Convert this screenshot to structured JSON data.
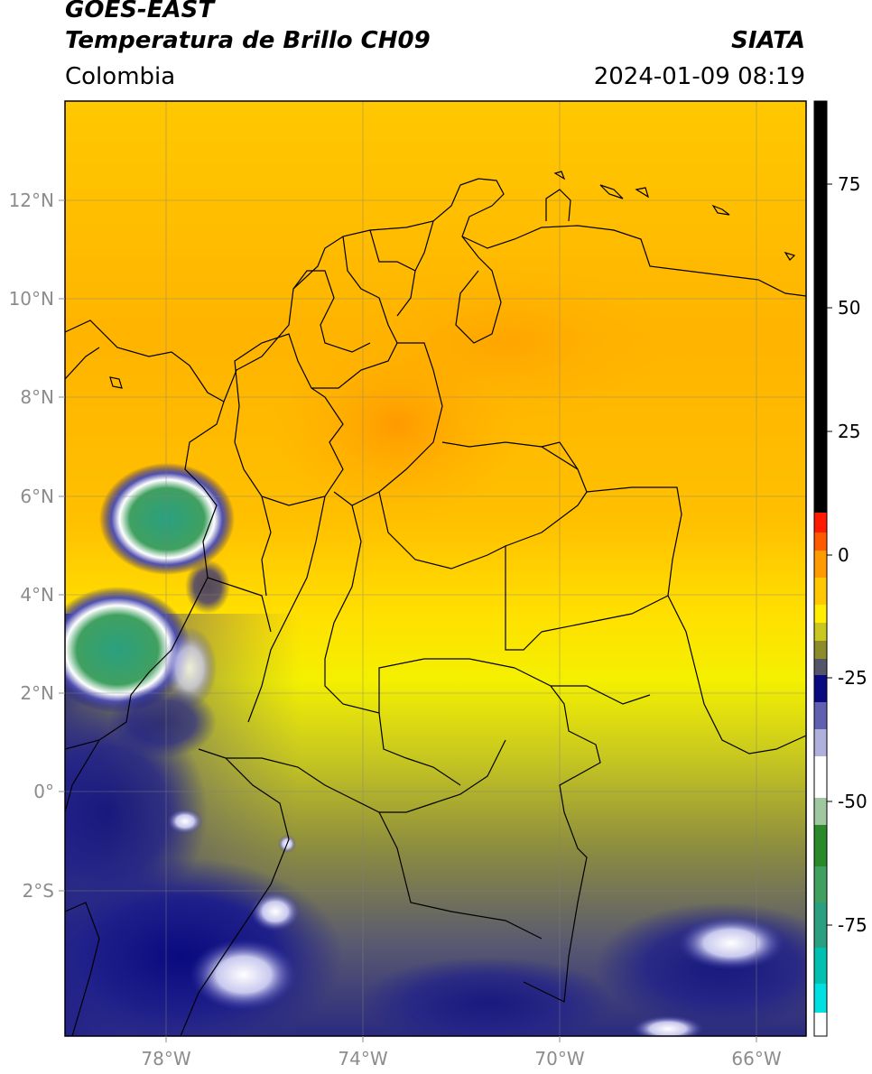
{
  "header": {
    "satellite": "GOES-EAST",
    "product": "Temperatura de Brillo CH09",
    "region": "Colombia",
    "agency": "SIATA",
    "datetime": "2024-01-09 08:19"
  },
  "map": {
    "lon_range": [
      -80,
      -65
    ],
    "lat_range": [
      -5,
      14
    ],
    "lon_ticks": [
      {
        "value": -78,
        "label": "78°W"
      },
      {
        "value": -74,
        "label": "74°W"
      },
      {
        "value": -70,
        "label": "70°W"
      },
      {
        "value": -66,
        "label": "66°W"
      }
    ],
    "lat_ticks": [
      {
        "value": 12,
        "label": "12°N"
      },
      {
        "value": 10,
        "label": "10°N"
      },
      {
        "value": 8,
        "label": "8°N"
      },
      {
        "value": 6,
        "label": "6°N"
      },
      {
        "value": 4,
        "label": "4°N"
      },
      {
        "value": 2,
        "label": "2°N"
      },
      {
        "value": 0,
        "label": "0°"
      },
      {
        "value": -2,
        "label": "2°S"
      }
    ],
    "gridlines": true
  },
  "colorbar": {
    "ticks": [
      {
        "value": 75,
        "label": "75"
      },
      {
        "value": 50,
        "label": "50"
      },
      {
        "value": 25,
        "label": "25"
      },
      {
        "value": 0,
        "label": "0"
      },
      {
        "value": -25,
        "label": "-25"
      },
      {
        "value": -50,
        "label": "-50"
      },
      {
        "value": -75,
        "label": "-75"
      }
    ],
    "colors": {
      "black": "#000000",
      "red": "#ff1a00",
      "orange": "#ff9a00",
      "yellow": "#ffee00",
      "olive": "#8c8c2a",
      "gray": "#55556a",
      "navy": "#0a0a80",
      "white": "#ffffff",
      "green": "#2a8a2a",
      "cyan": "#00e0e0"
    }
  }
}
